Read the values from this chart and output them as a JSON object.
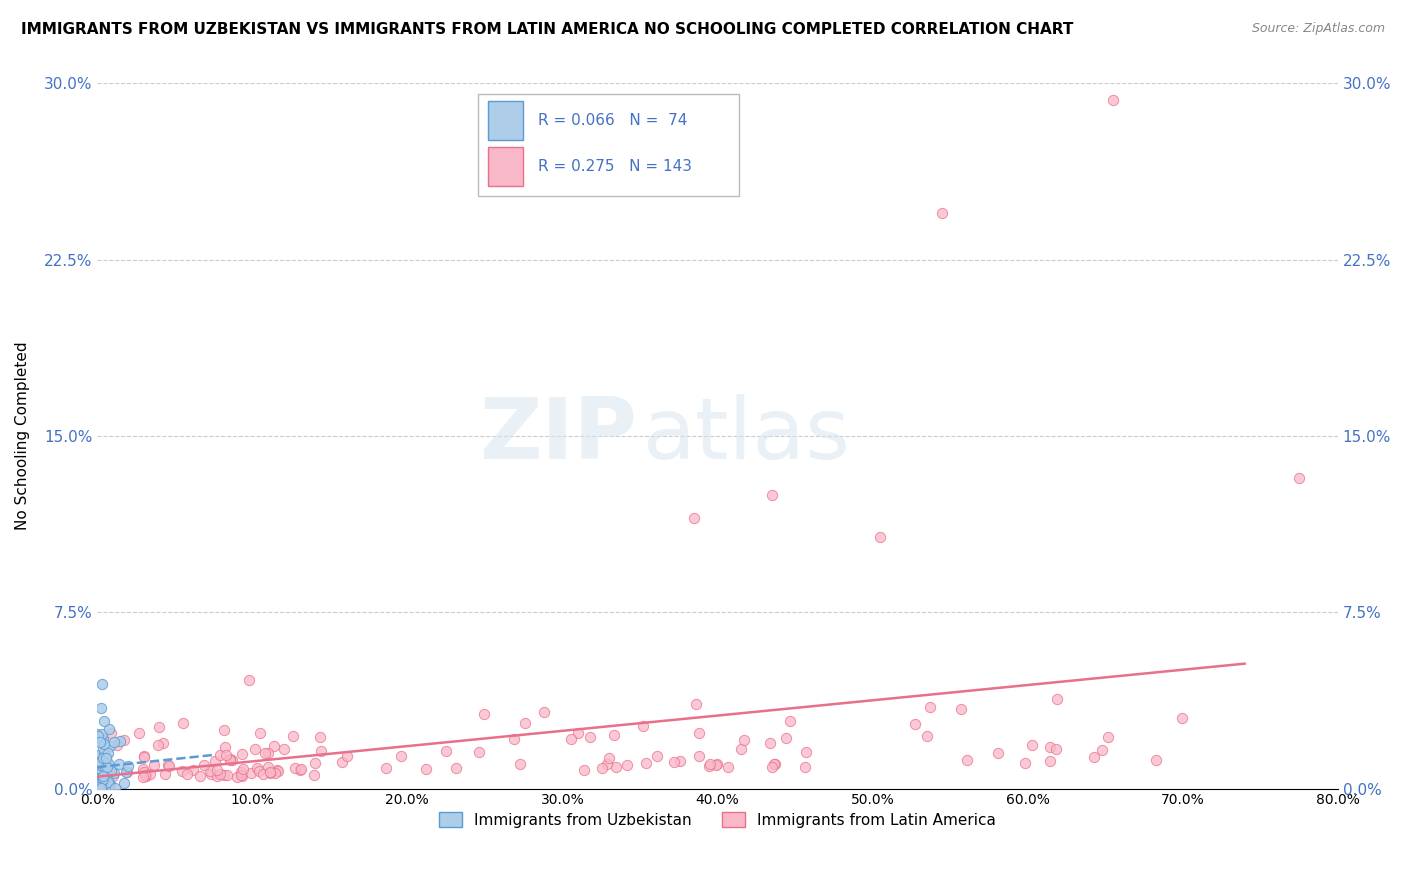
{
  "title": "IMMIGRANTS FROM UZBEKISTAN VS IMMIGRANTS FROM LATIN AMERICA NO SCHOOLING COMPLETED CORRELATION CHART",
  "source": "Source: ZipAtlas.com",
  "ylabel": "No Schooling Completed",
  "legend_label1": "Immigrants from Uzbekistan",
  "legend_label2": "Immigrants from Latin America",
  "R1": 0.066,
  "N1": 74,
  "R2": 0.275,
  "N2": 143,
  "color1": "#aecde8",
  "color2": "#f9b8c8",
  "edge_color1": "#5b9bd5",
  "edge_color2": "#e8708a",
  "trend_color1": "#5b9bd5",
  "trend_color2": "#e8708a",
  "xlim": [
    0.0,
    0.8
  ],
  "ylim": [
    0.0,
    0.3
  ],
  "xticks": [
    0.0,
    0.1,
    0.2,
    0.3,
    0.4,
    0.5,
    0.6,
    0.7,
    0.8
  ],
  "yticks": [
    0.0,
    0.075,
    0.15,
    0.225,
    0.3
  ],
  "ytick_labels": [
    "0.0%",
    "7.5%",
    "15.0%",
    "22.5%",
    "30.0%"
  ],
  "xtick_labels": [
    "0.0%",
    "10.0%",
    "20.0%",
    "30.0%",
    "40.0%",
    "50.0%",
    "60.0%",
    "70.0%",
    "80.0%"
  ],
  "grid_color": "#cccccc",
  "background_color": "#ffffff",
  "watermark_zip": "ZIP",
  "watermark_atlas": "atlas",
  "axis_label_color": "#4472c4",
  "title_fontsize": 11,
  "source_fontsize": 9
}
